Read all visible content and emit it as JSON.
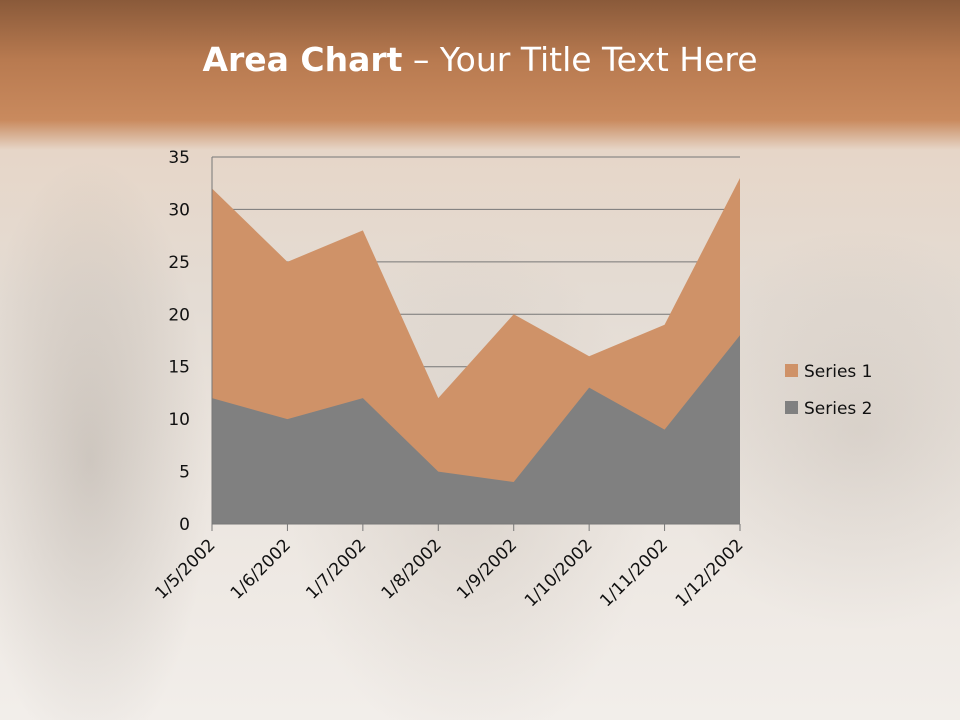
{
  "slide": {
    "title_bold": "Area Chart",
    "title_rest": " – Your Title Text Here"
  },
  "chart_data": {
    "type": "area",
    "stacked": false,
    "categories": [
      "1/5/2002",
      "1/6/2002",
      "1/7/2002",
      "1/8/2002",
      "1/9/2002",
      "1/10/2002",
      "1/11/2002",
      "1/12/2002"
    ],
    "series": [
      {
        "name": "Series 1",
        "values": [
          32,
          25,
          28,
          12,
          20,
          16,
          19,
          33
        ],
        "color": "#cf9268"
      },
      {
        "name": "Series 2",
        "values": [
          12,
          10,
          12,
          5,
          4,
          13,
          9,
          18
        ],
        "color": "#808080"
      }
    ],
    "ylim": [
      0,
      35
    ],
    "yticks": [
      0,
      5,
      10,
      15,
      20,
      25,
      30,
      35
    ],
    "grid": true,
    "legend": "right"
  }
}
